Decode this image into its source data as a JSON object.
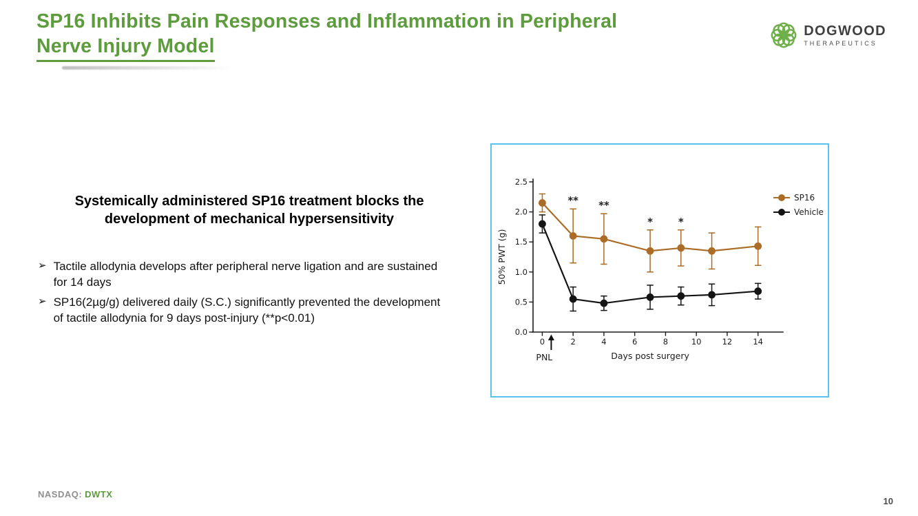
{
  "slide": {
    "title_line1": "SP16 Inhibits Pain Responses and Inflammation in Peripheral",
    "title_line2": "Nerve Injury Model",
    "heading": "Systemically administered SP16 treatment blocks the development of mechanical hypersensitivity",
    "bullet_glyph": "➢",
    "bullets": [
      "Tactile allodynia develops after peripheral nerve ligation and are sustained for 14 days",
      "SP16(2µg/g) delivered daily (S.C.) significantly prevented the development of tactile allodynia for 9 days post-injury (**p<0.01)"
    ],
    "footer_label": "NASDAQ:",
    "footer_ticker": "DWTX",
    "page_number": "10"
  },
  "logo": {
    "name_top": "DOGWOOD",
    "name_bottom": "THERAPEUTICS",
    "icon": "rosette-knot-icon",
    "icon_color": "#6faf4a"
  },
  "colors": {
    "title_green": "#5d9c3c",
    "chart_border": "#58c3ef",
    "sp16": "#ab6c25",
    "vehicle": "#141414"
  },
  "chart_data": {
    "type": "line",
    "x": [
      0,
      2,
      4,
      7,
      9,
      11,
      14
    ],
    "series": [
      {
        "name": "SP16",
        "color": "#ab6c25",
        "values": [
          2.15,
          1.6,
          1.55,
          1.35,
          1.4,
          1.35,
          1.43
        ],
        "err": [
          0.15,
          0.45,
          0.42,
          0.35,
          0.3,
          0.3,
          0.32
        ]
      },
      {
        "name": "Vehicle",
        "color": "#141414",
        "values": [
          1.8,
          0.55,
          0.48,
          0.58,
          0.6,
          0.62,
          0.68
        ],
        "err": [
          0.15,
          0.2,
          0.12,
          0.2,
          0.15,
          0.18,
          0.13
        ]
      }
    ],
    "annotations": [
      {
        "x": 2,
        "text": "**"
      },
      {
        "x": 4,
        "text": "**"
      },
      {
        "x": 7,
        "text": "*"
      },
      {
        "x": 9,
        "text": "*"
      }
    ],
    "xlabel": "Days post surgery",
    "ylabel": "50% PWT (g)",
    "arrow_label": "PNL",
    "xticks": [
      0,
      2,
      4,
      6,
      8,
      10,
      12,
      14
    ],
    "yticks": [
      0.0,
      0.5,
      1.0,
      1.5,
      2.0,
      2.5
    ],
    "xlim": [
      -0.6,
      15.4
    ],
    "ylim": [
      0.0,
      2.5
    ],
    "legend_position": "top-right",
    "grid": false
  }
}
